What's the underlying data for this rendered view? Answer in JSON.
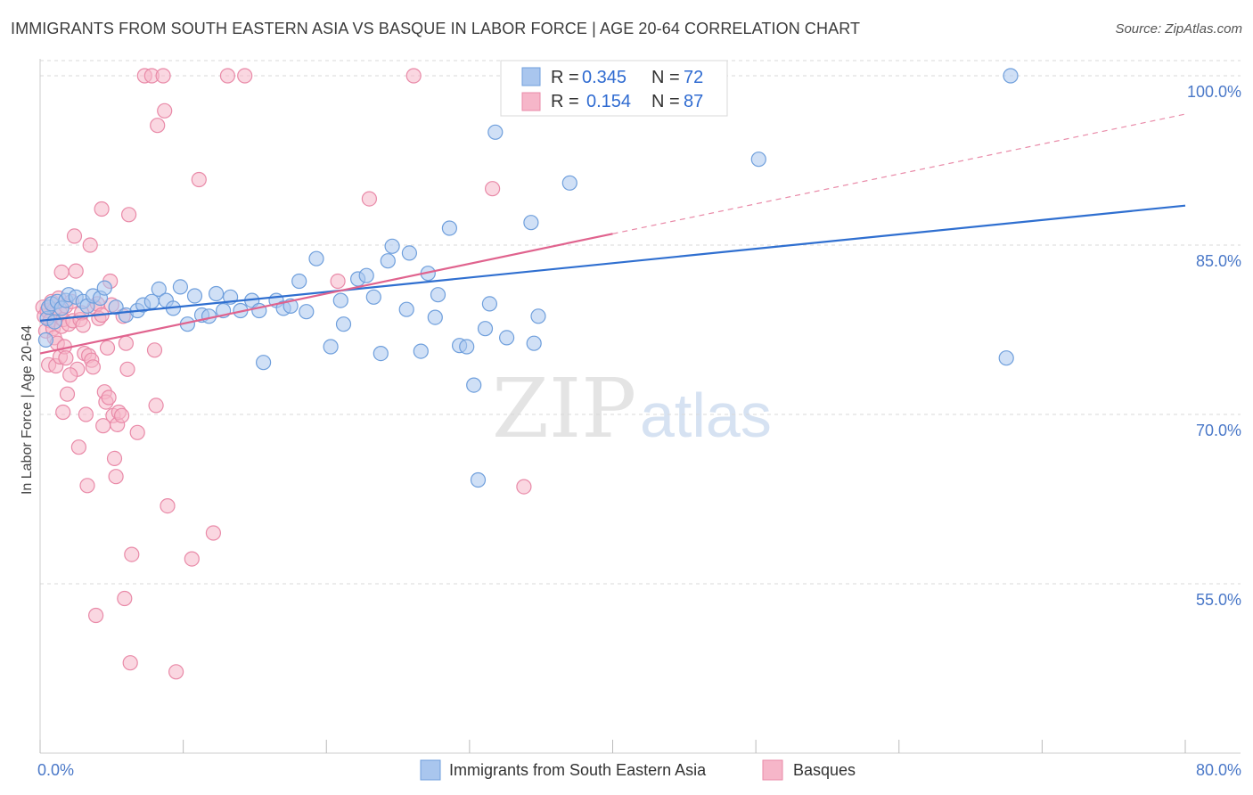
{
  "title": "IMMIGRANTS FROM SOUTH EASTERN ASIA VS BASQUE IN LABOR FORCE | AGE 20-64 CORRELATION CHART",
  "source": "Source: ZipAtlas.com",
  "watermark": {
    "zip": "ZIP",
    "atlas": "atlas"
  },
  "colors": {
    "blue_fill": "#a9c6ee",
    "blue_stroke": "#6f9fdc",
    "blue_line": "#2f6fd0",
    "pink_fill": "#f6b6c9",
    "pink_stroke": "#e98aa8",
    "pink_line": "#e0638e",
    "axis_text": "#4a78c8",
    "grid": "#d9d9d9"
  },
  "legend": {
    "rows": [
      {
        "r_label": "R =",
        "r_value": "0.345",
        "n_label": "N =",
        "n_value": "72"
      },
      {
        "r_label": "R =",
        "r_value": "0.154",
        "n_label": "N =",
        "n_value": "87"
      }
    ]
  },
  "chart_data": {
    "type": "scatter",
    "title": "IMMIGRANTS FROM SOUTH EASTERN ASIA VS BASQUE IN LABOR FORCE | AGE 20-64 CORRELATION CHART",
    "xlabel": "",
    "ylabel": "In Labor Force | Age 20-64",
    "xlim": [
      0,
      80
    ],
    "ylim": [
      40,
      101.5
    ],
    "x_tick_labels": [
      {
        "value": 0,
        "label": "0.0%"
      },
      {
        "value": 80,
        "label": "80.0%"
      }
    ],
    "y_tick_labels": [
      {
        "value": 100,
        "label": "100.0%"
      },
      {
        "value": 85,
        "label": "85.0%"
      },
      {
        "value": 70,
        "label": "70.0%"
      },
      {
        "value": 55,
        "label": "55.0%"
      }
    ],
    "grid": true,
    "legend_position": "top-center",
    "series": [
      {
        "name": "Immigrants from South Eastern Asia",
        "color": "#a9c6ee",
        "r": 0.345,
        "n": 72,
        "trend": {
          "x": [
            0,
            80
          ],
          "y": [
            78.3,
            88.5
          ],
          "style": "solid"
        },
        "points": [
          [
            0.4,
            76.6
          ],
          [
            0.5,
            78.5
          ],
          [
            0.6,
            79.5
          ],
          [
            0.8,
            79.8
          ],
          [
            1.0,
            78.2
          ],
          [
            1.2,
            80.0
          ],
          [
            1.5,
            79.4
          ],
          [
            1.8,
            80.1
          ],
          [
            2.0,
            80.6
          ],
          [
            2.5,
            80.4
          ],
          [
            3.0,
            80.0
          ],
          [
            3.3,
            79.6
          ],
          [
            3.7,
            80.5
          ],
          [
            4.2,
            80.3
          ],
          [
            4.5,
            81.2
          ],
          [
            5.3,
            79.5
          ],
          [
            6.0,
            78.8
          ],
          [
            6.8,
            79.2
          ],
          [
            7.2,
            79.7
          ],
          [
            7.8,
            80.0
          ],
          [
            8.3,
            81.1
          ],
          [
            8.8,
            80.1
          ],
          [
            9.3,
            79.4
          ],
          [
            9.8,
            81.3
          ],
          [
            10.3,
            78.0
          ],
          [
            10.8,
            80.5
          ],
          [
            11.3,
            78.8
          ],
          [
            11.8,
            78.7
          ],
          [
            12.3,
            80.7
          ],
          [
            12.8,
            79.2
          ],
          [
            13.3,
            80.4
          ],
          [
            14.0,
            79.2
          ],
          [
            14.8,
            80.1
          ],
          [
            15.3,
            79.2
          ],
          [
            15.6,
            74.6
          ],
          [
            16.5,
            80.1
          ],
          [
            17.0,
            79.4
          ],
          [
            17.5,
            79.6
          ],
          [
            18.1,
            81.8
          ],
          [
            18.6,
            79.1
          ],
          [
            19.3,
            83.8
          ],
          [
            20.3,
            76.0
          ],
          [
            21.0,
            80.1
          ],
          [
            21.2,
            78.0
          ],
          [
            22.2,
            82.0
          ],
          [
            22.8,
            82.3
          ],
          [
            23.3,
            80.4
          ],
          [
            23.8,
            75.4
          ],
          [
            24.3,
            83.6
          ],
          [
            24.6,
            84.9
          ],
          [
            25.6,
            79.3
          ],
          [
            25.8,
            84.3
          ],
          [
            26.6,
            75.6
          ],
          [
            27.1,
            82.5
          ],
          [
            27.6,
            78.6
          ],
          [
            27.8,
            80.6
          ],
          [
            28.6,
            86.5
          ],
          [
            29.3,
            76.1
          ],
          [
            29.8,
            76.0
          ],
          [
            30.3,
            72.6
          ],
          [
            30.6,
            64.2
          ],
          [
            31.1,
            77.6
          ],
          [
            31.4,
            79.8
          ],
          [
            31.8,
            95.0
          ],
          [
            32.6,
            76.8
          ],
          [
            34.3,
            87.0
          ],
          [
            34.5,
            76.3
          ],
          [
            34.8,
            78.7
          ],
          [
            37.0,
            90.5
          ],
          [
            50.2,
            92.6
          ],
          [
            67.8,
            100.0
          ],
          [
            67.5,
            75.0
          ]
        ]
      },
      {
        "name": "Basques",
        "color": "#f6b6c9",
        "r": 0.154,
        "n": 87,
        "trend": {
          "x": [
            0,
            40
          ],
          "y": [
            75.4,
            86.0
          ],
          "style": "solid"
        },
        "trend_extension": {
          "x": [
            40,
            80
          ],
          "y": [
            86.0,
            96.6
          ],
          "style": "dashed"
        },
        "points": [
          [
            0.2,
            79.5
          ],
          [
            0.3,
            78.7
          ],
          [
            0.4,
            77.4
          ],
          [
            0.5,
            79.2
          ],
          [
            0.6,
            74.4
          ],
          [
            0.7,
            78.3
          ],
          [
            0.8,
            80.0
          ],
          [
            0.9,
            77.6
          ],
          [
            1.0,
            76.8
          ],
          [
            1.0,
            79.3
          ],
          [
            1.1,
            74.3
          ],
          [
            1.2,
            76.3
          ],
          [
            1.3,
            80.3
          ],
          [
            1.4,
            79.0
          ],
          [
            1.4,
            75.1
          ],
          [
            1.5,
            82.6
          ],
          [
            1.5,
            77.8
          ],
          [
            1.6,
            78.4
          ],
          [
            1.7,
            76.0
          ],
          [
            1.8,
            79.6
          ],
          [
            1.8,
            75.0
          ],
          [
            1.9,
            71.8
          ],
          [
            2.0,
            78.0
          ],
          [
            2.2,
            80.0
          ],
          [
            2.3,
            78.3
          ],
          [
            2.4,
            85.8
          ],
          [
            2.5,
            82.7
          ],
          [
            2.6,
            74.0
          ],
          [
            2.7,
            67.1
          ],
          [
            2.8,
            78.4
          ],
          [
            2.9,
            79.0
          ],
          [
            3.0,
            77.9
          ],
          [
            3.1,
            75.4
          ],
          [
            3.2,
            70.0
          ],
          [
            3.3,
            63.7
          ],
          [
            3.4,
            75.2
          ],
          [
            3.5,
            85.0
          ],
          [
            3.6,
            74.8
          ],
          [
            3.8,
            79.5
          ],
          [
            3.9,
            52.2
          ],
          [
            4.0,
            79.8
          ],
          [
            4.1,
            78.5
          ],
          [
            4.3,
            78.8
          ],
          [
            4.3,
            88.2
          ],
          [
            4.5,
            72.0
          ],
          [
            4.6,
            71.1
          ],
          [
            4.7,
            75.9
          ],
          [
            4.8,
            71.5
          ],
          [
            4.9,
            81.8
          ],
          [
            5.0,
            79.7
          ],
          [
            5.1,
            69.9
          ],
          [
            5.2,
            66.1
          ],
          [
            5.3,
            64.5
          ],
          [
            5.4,
            69.1
          ],
          [
            5.5,
            70.2
          ],
          [
            5.7,
            69.9
          ],
          [
            5.8,
            78.7
          ],
          [
            5.9,
            53.7
          ],
          [
            6.0,
            76.3
          ],
          [
            6.1,
            74.0
          ],
          [
            6.2,
            87.7
          ],
          [
            6.3,
            48.0
          ],
          [
            6.4,
            57.6
          ],
          [
            6.8,
            68.4
          ],
          [
            7.3,
            100.0
          ],
          [
            7.8,
            100.0
          ],
          [
            8.0,
            75.7
          ],
          [
            8.1,
            70.8
          ],
          [
            8.2,
            95.6
          ],
          [
            8.6,
            100.0
          ],
          [
            8.7,
            96.9
          ],
          [
            8.9,
            61.9
          ],
          [
            9.5,
            47.2
          ],
          [
            10.6,
            57.2
          ],
          [
            11.1,
            90.8
          ],
          [
            12.1,
            59.5
          ],
          [
            13.1,
            100.0
          ],
          [
            14.3,
            100.0
          ],
          [
            20.8,
            81.8
          ],
          [
            23.0,
            89.1
          ],
          [
            26.1,
            100.0
          ],
          [
            31.6,
            90.0
          ],
          [
            33.8,
            63.6
          ],
          [
            1.6,
            70.2
          ],
          [
            2.1,
            73.5
          ],
          [
            3.7,
            74.2
          ],
          [
            4.4,
            69.0
          ]
        ]
      }
    ]
  }
}
